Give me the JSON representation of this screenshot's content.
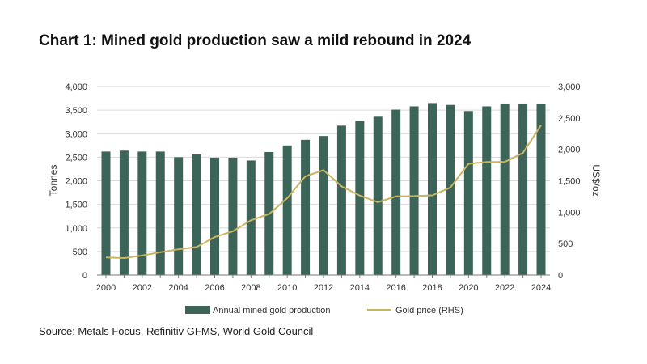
{
  "chart_data": {
    "type": "bar",
    "title": "Chart 1: Mined gold production saw a mild rebound in 2024",
    "source": "Source: Metals Focus, Refinitiv GFMS, World Gold Council",
    "x": [
      2000,
      2001,
      2002,
      2003,
      2004,
      2005,
      2006,
      2007,
      2008,
      2009,
      2010,
      2011,
      2012,
      2013,
      2014,
      2015,
      2016,
      2017,
      2018,
      2019,
      2020,
      2021,
      2022,
      2023,
      2024
    ],
    "x_tick_labels": [
      "2000",
      "2002",
      "2004",
      "2006",
      "2008",
      "2010",
      "2012",
      "2014",
      "2016",
      "2018",
      "2020",
      "2022",
      "2024"
    ],
    "ylabel": "Tonnes",
    "ylabel_right": "US$/oz",
    "ylim": [
      0,
      4000
    ],
    "ylim_right": [
      0,
      3000
    ],
    "y_tick_labels": [
      "0",
      "500",
      "1,000",
      "1,500",
      "2,000",
      "2,500",
      "3,000",
      "3,500",
      "4,000"
    ],
    "y_tick_labels_right": [
      "0",
      "500",
      "1,000",
      "1,500",
      "2,000",
      "2,500",
      "3,000"
    ],
    "series": [
      {
        "name": "Annual mined gold production",
        "type": "bar",
        "axis": "left",
        "color": "#3d6458",
        "values": [
          2620,
          2640,
          2620,
          2620,
          2500,
          2560,
          2490,
          2490,
          2430,
          2610,
          2750,
          2870,
          2950,
          3170,
          3270,
          3360,
          3510,
          3580,
          3650,
          3610,
          3480,
          3580,
          3640,
          3640,
          3640
        ]
      },
      {
        "name": "Gold price (RHS)",
        "type": "line",
        "axis": "right",
        "color": "#c8b560",
        "values": [
          279,
          271,
          310,
          363,
          409,
          445,
          604,
          695,
          872,
          972,
          1225,
          1572,
          1669,
          1411,
          1266,
          1160,
          1251,
          1257,
          1268,
          1393,
          1770,
          1799,
          1800,
          1943,
          2386
        ]
      }
    ],
    "legend_position": "bottom-center",
    "grid": true
  }
}
